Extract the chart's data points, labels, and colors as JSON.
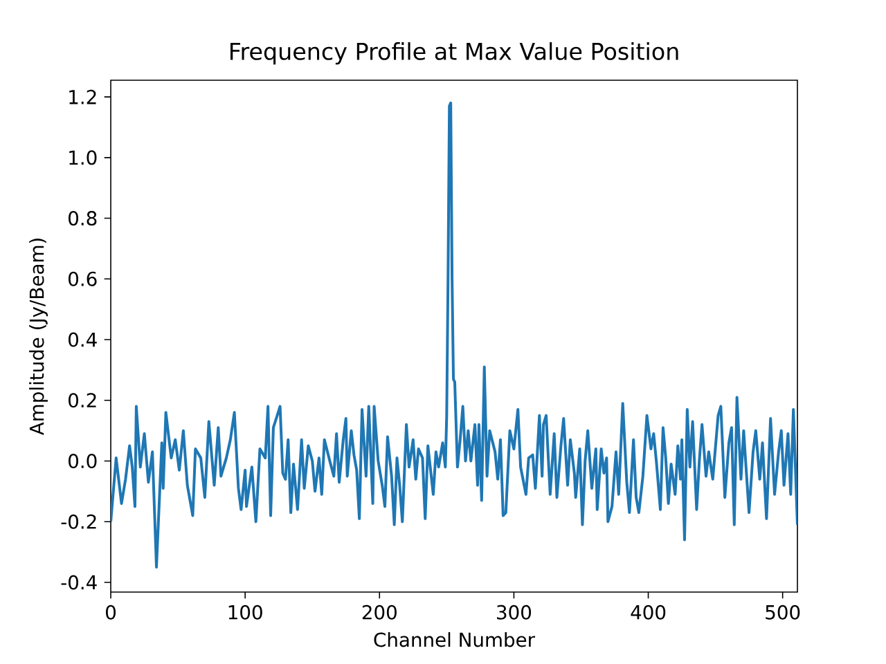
{
  "chart_data": {
    "type": "line",
    "title": "Frequency Profile at Max Value Position",
    "xlabel": "Channel Number",
    "ylabel": "Amplitude (Jy/Beam)",
    "xlim": [
      0,
      511
    ],
    "ylim": [
      -0.432,
      1.255
    ],
    "xticks": [
      0,
      100,
      200,
      300,
      400,
      500
    ],
    "yticks": [
      -0.4,
      -0.2,
      {
        "value": 0,
        "label": "0.0"
      },
      0.2,
      0.4,
      0.6,
      0.8,
      {
        "value": 1,
        "label": "1.0"
      },
      1.2
    ],
    "series": [
      {
        "color": "#1f77b4",
        "x": [
          0,
          4,
          8,
          11,
          14,
          16,
          18,
          19,
          22,
          25,
          28,
          31,
          34,
          38,
          39,
          41,
          45,
          48,
          51,
          54,
          57,
          61,
          63,
          67,
          70,
          73,
          77,
          80,
          82,
          86,
          89,
          92,
          95,
          97,
          100,
          101,
          105,
          108,
          111,
          115,
          117,
          119,
          121,
          126,
          128,
          130,
          132,
          134,
          136,
          139,
          142,
          144,
          147,
          150,
          152,
          155,
          157,
          159,
          163,
          166,
          168,
          170,
          173,
          175,
          176,
          179,
          181,
          183,
          185,
          187,
          190,
          192,
          195,
          196,
          199,
          202,
          204,
          206,
          209,
          211,
          213,
          215,
          217,
          220,
          222,
          225,
          227,
          229,
          232,
          234,
          236,
          240,
          242,
          244,
          247,
          249,
          250,
          251,
          252,
          253,
          254,
          255,
          256,
          258,
          260,
          262,
          264,
          266,
          268,
          271,
          273,
          274,
          276,
          278,
          280,
          282,
          286,
          288,
          290,
          292,
          294,
          297,
          300,
          303,
          305,
          309,
          311,
          314,
          316,
          319,
          321,
          322,
          324,
          327,
          330,
          332,
          335,
          337,
          340,
          342,
          345,
          346,
          349,
          351,
          353,
          355,
          358,
          361,
          362,
          365,
          367,
          369,
          370,
          373,
          376,
          378,
          381,
          384,
          386,
          389,
          391,
          393,
          396,
          399,
          402,
          404,
          406,
          409,
          411,
          413,
          415,
          417,
          420,
          422,
          424,
          425,
          427,
          429,
          431,
          433,
          436,
          438,
          440,
          443,
          445,
          448,
          452,
          454,
          457,
          460,
          462,
          464,
          466,
          469,
          471,
          472,
          475,
          478,
          480,
          483,
          485,
          488,
          491,
          494,
          497,
          499,
          501,
          504,
          506,
          508,
          511
        ],
        "values": [
          -0.2,
          0.01,
          -0.14,
          -0.06,
          0.05,
          -0.02,
          -0.15,
          0.18,
          -0.02,
          0.09,
          -0.07,
          0.03,
          -0.35,
          0.06,
          -0.09,
          0.16,
          0.01,
          0.07,
          -0.03,
          0.1,
          -0.08,
          -0.18,
          0.04,
          0.01,
          -0.12,
          0.13,
          -0.08,
          0.11,
          -0.05,
          0.01,
          0.07,
          0.16,
          -0.09,
          -0.16,
          -0.03,
          -0.15,
          -0.02,
          -0.2,
          0.04,
          0.01,
          0.18,
          -0.18,
          0.11,
          0.18,
          -0.04,
          -0.06,
          0.07,
          -0.17,
          -0.01,
          -0.16,
          0.07,
          -0.09,
          0.05,
          0.0,
          -0.1,
          0.01,
          -0.11,
          0.07,
          0.0,
          -0.05,
          0.09,
          -0.07,
          0.07,
          0.14,
          -0.05,
          0.1,
          0.02,
          -0.03,
          -0.19,
          0.17,
          -0.05,
          0.18,
          -0.14,
          0.18,
          0.0,
          -0.08,
          -0.15,
          0.08,
          -0.05,
          -0.21,
          0.01,
          -0.08,
          -0.2,
          0.12,
          -0.02,
          0.07,
          -0.06,
          0.04,
          0.01,
          -0.19,
          0.05,
          -0.11,
          0.03,
          -0.02,
          0.06,
          -0.02,
          0.15,
          0.6,
          1.17,
          1.18,
          0.6,
          0.27,
          0.26,
          -0.02,
          0.07,
          0.18,
          0.0,
          0.1,
          0.0,
          0.12,
          -0.08,
          0.12,
          -0.13,
          0.31,
          -0.05,
          0.1,
          0.03,
          -0.06,
          0.07,
          -0.18,
          -0.17,
          0.1,
          0.04,
          0.17,
          -0.02,
          -0.11,
          0.01,
          0.02,
          -0.09,
          0.15,
          -0.05,
          0.12,
          0.15,
          -0.11,
          0.09,
          -0.12,
          0.05,
          0.14,
          -0.08,
          0.07,
          -0.04,
          -0.12,
          0.04,
          -0.21,
          0.0,
          0.1,
          -0.09,
          0.04,
          -0.16,
          0.04,
          -0.04,
          0.01,
          -0.2,
          -0.15,
          0.03,
          -0.11,
          0.19,
          -0.07,
          -0.17,
          0.07,
          -0.12,
          -0.17,
          -0.05,
          0.15,
          0.04,
          0.09,
          0.0,
          -0.16,
          0.11,
          0.01,
          -0.14,
          -0.01,
          -0.11,
          0.05,
          -0.06,
          0.07,
          -0.26,
          0.17,
          -0.02,
          0.13,
          -0.16,
          0.0,
          0.12,
          -0.05,
          0.03,
          -0.06,
          0.15,
          0.18,
          -0.12,
          0.06,
          0.11,
          -0.21,
          0.21,
          -0.06,
          0.1,
          0.03,
          -0.17,
          0.03,
          0.1,
          -0.06,
          0.06,
          -0.19,
          0.14,
          -0.11,
          0.03,
          0.1,
          -0.08,
          0.09,
          -0.11,
          0.17,
          -0.21
        ]
      }
    ]
  }
}
